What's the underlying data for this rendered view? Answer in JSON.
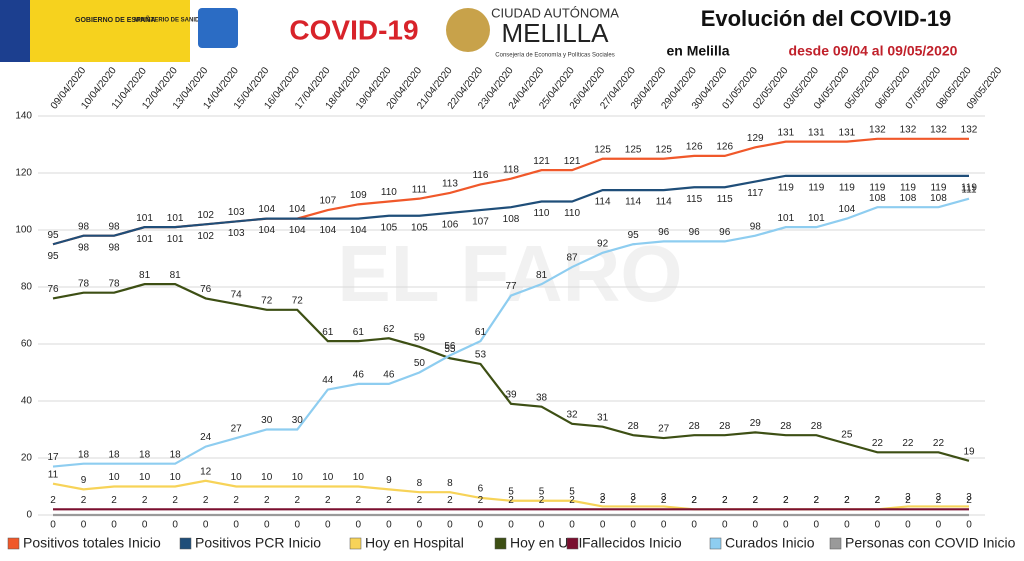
{
  "chart_data": {
    "type": "line",
    "title": "Evolución del COVID-19",
    "subtitle_place": "en Melilla",
    "subtitle_dates": "desde 09/04 al 09/05/2020",
    "logos": [
      "GOBIERNO DE ESPAÑA",
      "MINISTERIO DE SANIDAD",
      "COVID-19",
      "CIUDAD AUTÓNOMA",
      "MELILLA",
      "Consejería de Economía y Políticas Sociales"
    ],
    "watermark": "EL FARO",
    "categories": [
      "09/04/2020",
      "10/04/2020",
      "11/04/2020",
      "12/04/2020",
      "13/04/2020",
      "14/04/2020",
      "15/04/2020",
      "16/04/2020",
      "17/04/2020",
      "18/04/2020",
      "19/04/2020",
      "20/04/2020",
      "21/04/2020",
      "22/04/2020",
      "23/04/2020",
      "24/04/2020",
      "25/04/2020",
      "26/04/2020",
      "27/04/2020",
      "28/04/2020",
      "29/04/2020",
      "30/04/2020",
      "01/05/2020",
      "02/05/2020",
      "03/05/2020",
      "04/05/2020",
      "05/05/2020",
      "06/05/2020",
      "07/05/2020",
      "08/05/2020",
      "09/05/2020"
    ],
    "ylim": [
      0,
      140
    ],
    "yticks": [
      0,
      20,
      40,
      60,
      80,
      100,
      120,
      140
    ],
    "grid": true,
    "legend": "bottom",
    "series": [
      {
        "name": "Positivos totales Inicio",
        "color": "#f0582a",
        "values": [
          95,
          98,
          98,
          101,
          101,
          102,
          103,
          104,
          104,
          107,
          109,
          110,
          111,
          113,
          116,
          118,
          121,
          121,
          125,
          125,
          125,
          126,
          126,
          129,
          131,
          131,
          131,
          132,
          132,
          132,
          132
        ]
      },
      {
        "name": "Positivos PCR Inicio",
        "color": "#1f4e79",
        "values": [
          95,
          98,
          98,
          101,
          101,
          102,
          103,
          104,
          104,
          104,
          104,
          105,
          105,
          106,
          107,
          108,
          110,
          110,
          114,
          114,
          114,
          115,
          115,
          117,
          119,
          119,
          119,
          119,
          119,
          119,
          119
        ]
      },
      {
        "name": "Hoy en Hospital",
        "color": "#f7d358",
        "values": [
          11,
          9,
          10,
          10,
          10,
          12,
          10,
          10,
          10,
          10,
          10,
          9,
          8,
          8,
          6,
          5,
          5,
          5,
          3,
          3,
          3,
          2,
          2,
          2,
          2,
          2,
          2,
          2,
          3,
          3,
          3
        ]
      },
      {
        "name": "Hoy en UCI",
        "color": "#3d4f14",
        "values": [
          76,
          78,
          78,
          81,
          81,
          76,
          74,
          72,
          72,
          61,
          61,
          62,
          59,
          55,
          53,
          39,
          38,
          32,
          31,
          28,
          27,
          28,
          28,
          29,
          28,
          28,
          25,
          22,
          22,
          22,
          19
        ]
      },
      {
        "name": "Fallecidos Inicio",
        "color": "#7a0f2f",
        "values": [
          2,
          2,
          2,
          2,
          2,
          2,
          2,
          2,
          2,
          2,
          2,
          2,
          2,
          2,
          2,
          2,
          2,
          2,
          2,
          2,
          2,
          2,
          2,
          2,
          2,
          2,
          2,
          2,
          2,
          2,
          2
        ]
      },
      {
        "name": "Curados Inicio",
        "color": "#8ecdf0",
        "values": [
          17,
          18,
          18,
          18,
          18,
          24,
          27,
          30,
          30,
          44,
          46,
          46,
          50,
          56,
          61,
          77,
          81,
          87,
          92,
          95,
          96,
          96,
          96,
          98,
          101,
          101,
          104,
          108,
          108,
          108,
          111
        ]
      },
      {
        "name": "Personas con COVID Inicio",
        "color": "#9a9a9a",
        "values": [
          0,
          0,
          0,
          0,
          0,
          0,
          0,
          0,
          0,
          0,
          0,
          0,
          0,
          0,
          0,
          0,
          0,
          0,
          0,
          0,
          0,
          0,
          0,
          0,
          0,
          0,
          0,
          0,
          0,
          0,
          0
        ]
      }
    ]
  }
}
